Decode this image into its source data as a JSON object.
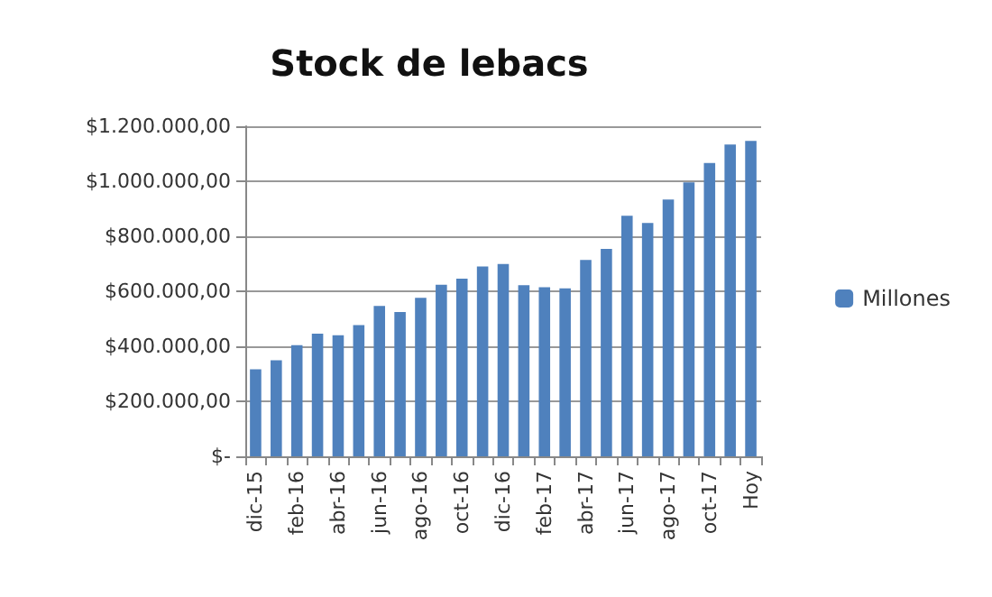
{
  "chart_data": {
    "type": "bar",
    "title": "Stock de lebacs",
    "categories": [
      "dic-15",
      null,
      "feb-16",
      null,
      "abr-16",
      null,
      "jun-16",
      null,
      "ago-16",
      null,
      "oct-16",
      null,
      "dic-16",
      null,
      "feb-17",
      null,
      "abr-17",
      null,
      "jun-17",
      null,
      "ago-17",
      null,
      "oct-17",
      null,
      "Hoy"
    ],
    "series": [
      {
        "name": "Millones",
        "color": "#4f81bd",
        "values": [
          316000,
          349000,
          404000,
          446000,
          440000,
          477000,
          547000,
          525000,
          576000,
          624000,
          646000,
          690000,
          699000,
          622000,
          615000,
          611000,
          714000,
          754000,
          875000,
          848000,
          934000,
          996000,
          1066000,
          1134000,
          1147000
        ]
      }
    ],
    "ylim": [
      0,
      1200000
    ],
    "yticks": [
      {
        "value": 0,
        "label": "$-"
      },
      {
        "value": 200000,
        "label": "$200.000,00"
      },
      {
        "value": 400000,
        "label": "$400.000,00"
      },
      {
        "value": 600000,
        "label": "$600.000,00"
      },
      {
        "value": 800000,
        "label": "$800.000,00"
      },
      {
        "value": 1000000,
        "label": "$1.000.000,00"
      },
      {
        "value": 1200000,
        "label": "$1.200.000,00"
      }
    ],
    "grid": "y",
    "legend": "right"
  }
}
